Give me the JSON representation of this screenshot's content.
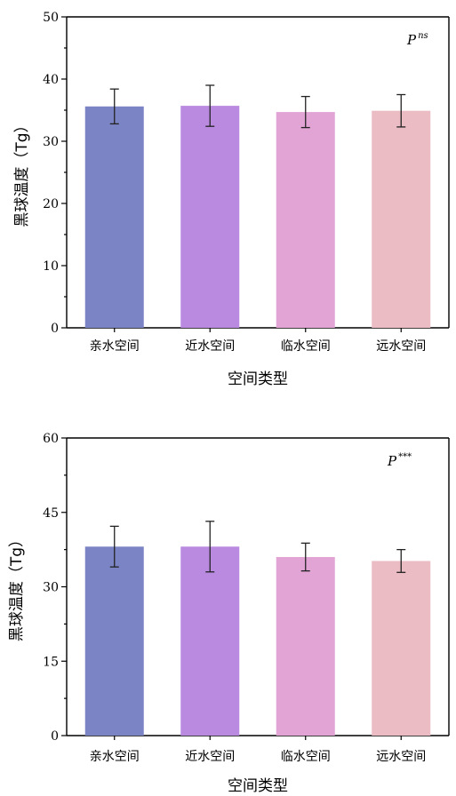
{
  "chart_data": [
    {
      "type": "bar",
      "ylabel": "黑球温度（Tg）",
      "xlabel": "空间类型",
      "categories": [
        "亲水空间",
        "近水空间",
        "临水空间",
        "远水空间"
      ],
      "values": [
        35.6,
        35.7,
        34.7,
        34.9
      ],
      "errors": [
        2.8,
        3.3,
        2.5,
        2.6
      ],
      "ylim": [
        0,
        50
      ],
      "yticks": [
        "0",
        "10",
        "20",
        "30",
        "40",
        "50"
      ],
      "significance": {
        "label": "P",
        "superscript": "ns"
      },
      "colors": [
        "#7b84c4",
        "#b98ae0",
        "#e2a3d5",
        "#ebbcc4"
      ],
      "grid": false
    },
    {
      "type": "bar",
      "ylabel": "黑球温度（Tg）",
      "xlabel": "空间类型",
      "categories": [
        "亲水空间",
        "近水空间",
        "临水空间",
        "远水空间"
      ],
      "values": [
        38.1,
        38.1,
        36.0,
        35.2
      ],
      "errors": [
        4.1,
        5.1,
        2.8,
        2.3
      ],
      "ylim": [
        0,
        60
      ],
      "yticks": [
        "0",
        "15",
        "30",
        "45",
        "60"
      ],
      "significance": {
        "label": "P",
        "superscript": "***"
      },
      "colors": [
        "#7b84c4",
        "#b98ae0",
        "#e2a3d5",
        "#ebbcc4"
      ],
      "grid": false
    }
  ]
}
